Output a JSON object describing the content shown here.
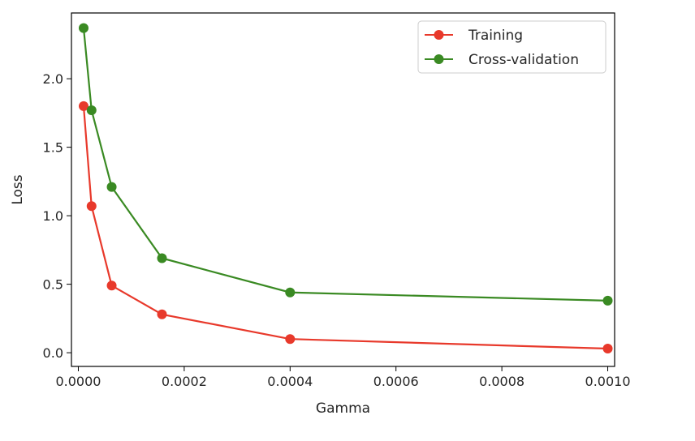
{
  "chart_data": {
    "type": "line",
    "title": "",
    "xlabel": "Gamma",
    "ylabel": "Loss",
    "xlim": [
      -1.3e-05,
      0.001013
    ],
    "ylim": [
      -0.1,
      2.48
    ],
    "xticks": [
      0.0,
      0.0002,
      0.0004,
      0.0006,
      0.0008,
      0.001
    ],
    "xtick_labels": [
      "0.0000",
      "0.0002",
      "0.0004",
      "0.0006",
      "0.0008",
      "0.0010"
    ],
    "yticks": [
      0.0,
      0.5,
      1.0,
      1.5,
      2.0
    ],
    "ytick_labels": [
      "0.0",
      "0.5",
      "1.0",
      "1.5",
      "2.0"
    ],
    "grid": false,
    "legend_position": "top-right",
    "series": [
      {
        "name": "Training",
        "color": "#e8392b",
        "x": [
          1e-05,
          2.5e-05,
          6.3e-05,
          0.000158,
          0.0004,
          0.001
        ],
        "y": [
          1.8,
          1.07,
          0.49,
          0.28,
          0.1,
          0.03
        ]
      },
      {
        "name": "Cross-validation",
        "color": "#3a8a23",
        "x": [
          1e-05,
          2.5e-05,
          6.3e-05,
          0.000158,
          0.0004,
          0.001
        ],
        "y": [
          2.37,
          1.77,
          1.21,
          0.69,
          0.44,
          0.38
        ]
      }
    ]
  }
}
